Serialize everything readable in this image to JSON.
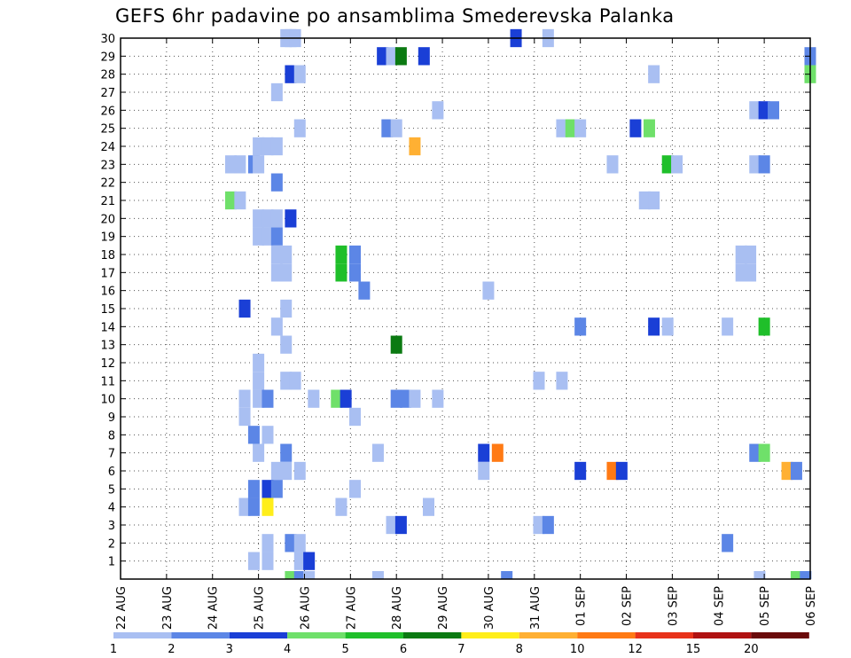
{
  "chart_data": {
    "type": "heatmap",
    "title": "GEFS 6hr padavine po ansamblima Smederevska Palanka",
    "xlabel": "",
    "ylabel": "",
    "x_tick_labels": [
      "22 AUG",
      "23 AUG",
      "24 AUG",
      "25 AUG",
      "26 AUG",
      "27 AUG",
      "28 AUG",
      "29 AUG",
      "30 AUG",
      "31 AUG",
      "01 SEP",
      "02 SEP",
      "03 SEP",
      "04 SEP",
      "05 SEP",
      "06 SEP"
    ],
    "xlim_days": [
      0,
      15
    ],
    "y_tick_labels": [
      "1",
      "2",
      "3",
      "4",
      "5",
      "6",
      "7",
      "8",
      "9",
      "10",
      "11",
      "12",
      "13",
      "14",
      "15",
      "16",
      "17",
      "18",
      "19",
      "20",
      "21",
      "22",
      "23",
      "24",
      "25",
      "26",
      "27",
      "28",
      "29",
      "30"
    ],
    "ylim": [
      0,
      30
    ],
    "grid": true,
    "colorbar": {
      "labels": [
        "1",
        "2",
        "3",
        "4",
        "5",
        "6",
        "7",
        "8",
        "10",
        "12",
        "15",
        "20"
      ],
      "colors": [
        "#a9bff2",
        "#5c86e6",
        "#1a3fd6",
        "#6fe06a",
        "#1fbf2a",
        "#0b7a12",
        "#ffee1a",
        "#ffb033",
        "#ff7a14",
        "#e8321a",
        "#b01212",
        "#6a0a0a"
      ]
    },
    "cells": [
      [
        3.6,
        30,
        0
      ],
      [
        3.7,
        30,
        0
      ],
      [
        3.8,
        30,
        0
      ],
      [
        8.6,
        30,
        2
      ],
      [
        9.3,
        30,
        0
      ],
      [
        5.7,
        29,
        2
      ],
      [
        5.9,
        29,
        0
      ],
      [
        6.1,
        29,
        5
      ],
      [
        6.6,
        29,
        2
      ],
      [
        15.0,
        29,
        1
      ],
      [
        3.7,
        28,
        2
      ],
      [
        3.9,
        28,
        0
      ],
      [
        11.6,
        28,
        0
      ],
      [
        15.0,
        28,
        3
      ],
      [
        3.4,
        27,
        0
      ],
      [
        6.9,
        26,
        0
      ],
      [
        13.8,
        26,
        0
      ],
      [
        14.0,
        26,
        2
      ],
      [
        14.2,
        26,
        1
      ],
      [
        3.9,
        25,
        0
      ],
      [
        5.8,
        25,
        1
      ],
      [
        6.0,
        25,
        0
      ],
      [
        9.6,
        25,
        0
      ],
      [
        9.8,
        25,
        3
      ],
      [
        10.0,
        25,
        0
      ],
      [
        11.2,
        25,
        2
      ],
      [
        11.5,
        25,
        3
      ],
      [
        6.4,
        24,
        7
      ],
      [
        3.0,
        24,
        0
      ],
      [
        3.2,
        24,
        0
      ],
      [
        3.4,
        24,
        0
      ],
      [
        2.4,
        23,
        0
      ],
      [
        2.6,
        23,
        0
      ],
      [
        2.9,
        23,
        1
      ],
      [
        3.0,
        23,
        0
      ],
      [
        10.7,
        23,
        0
      ],
      [
        11.9,
        23,
        4
      ],
      [
        12.1,
        23,
        0
      ],
      [
        13.8,
        23,
        0
      ],
      [
        14.0,
        23,
        1
      ],
      [
        3.4,
        22,
        1
      ],
      [
        2.4,
        21,
        3
      ],
      [
        2.6,
        21,
        0
      ],
      [
        11.4,
        21,
        0
      ],
      [
        11.6,
        21,
        0
      ],
      [
        3.0,
        20,
        0
      ],
      [
        3.2,
        20,
        0
      ],
      [
        3.4,
        20,
        0
      ],
      [
        3.7,
        20,
        2
      ],
      [
        3.0,
        19,
        0
      ],
      [
        3.2,
        19,
        0
      ],
      [
        3.4,
        19,
        1
      ],
      [
        3.4,
        18,
        0
      ],
      [
        3.6,
        18,
        0
      ],
      [
        4.8,
        18,
        4
      ],
      [
        5.1,
        18,
        1
      ],
      [
        13.5,
        18,
        0
      ],
      [
        13.7,
        18,
        0
      ],
      [
        3.4,
        17,
        0
      ],
      [
        3.6,
        17,
        0
      ],
      [
        4.8,
        17,
        4
      ],
      [
        5.1,
        17,
        1
      ],
      [
        13.5,
        17,
        0
      ],
      [
        13.7,
        17,
        0
      ],
      [
        5.3,
        16,
        1
      ],
      [
        8.0,
        16,
        0
      ],
      [
        2.7,
        15,
        2
      ],
      [
        3.6,
        15,
        0
      ],
      [
        3.4,
        14,
        0
      ],
      [
        10.0,
        14,
        1
      ],
      [
        11.6,
        14,
        2
      ],
      [
        11.9,
        14,
        0
      ],
      [
        13.2,
        14,
        0
      ],
      [
        14.0,
        14,
        4
      ],
      [
        6.0,
        13,
        5
      ],
      [
        3.6,
        13,
        0
      ],
      [
        3.0,
        12,
        0
      ],
      [
        3.0,
        11,
        0
      ],
      [
        3.6,
        11,
        0
      ],
      [
        3.8,
        11,
        0
      ],
      [
        9.1,
        11,
        0
      ],
      [
        9.6,
        11,
        0
      ],
      [
        2.7,
        10,
        0
      ],
      [
        3.0,
        10,
        0
      ],
      [
        3.2,
        10,
        1
      ],
      [
        4.2,
        10,
        0
      ],
      [
        4.7,
        10,
        3
      ],
      [
        4.9,
        10,
        2
      ],
      [
        6.0,
        10,
        1
      ],
      [
        6.2,
        10,
        1
      ],
      [
        6.4,
        10,
        0
      ],
      [
        6.9,
        10,
        0
      ],
      [
        2.7,
        9,
        0
      ],
      [
        5.1,
        9,
        0
      ],
      [
        2.9,
        8,
        1
      ],
      [
        3.2,
        8,
        0
      ],
      [
        3.0,
        7,
        0
      ],
      [
        3.6,
        7,
        1
      ],
      [
        5.6,
        7,
        0
      ],
      [
        7.9,
        7,
        2
      ],
      [
        8.2,
        7,
        8
      ],
      [
        13.8,
        7,
        1
      ],
      [
        14.0,
        7,
        3
      ],
      [
        3.4,
        6,
        0
      ],
      [
        3.6,
        6,
        0
      ],
      [
        3.9,
        6,
        0
      ],
      [
        7.9,
        6,
        0
      ],
      [
        10.0,
        6,
        2
      ],
      [
        10.7,
        6,
        8
      ],
      [
        10.9,
        6,
        2
      ],
      [
        14.5,
        6,
        7
      ],
      [
        14.7,
        6,
        1
      ],
      [
        2.9,
        5,
        1
      ],
      [
        3.2,
        5,
        2
      ],
      [
        3.4,
        5,
        1
      ],
      [
        5.1,
        5,
        0
      ],
      [
        2.7,
        4,
        0
      ],
      [
        2.9,
        4,
        1
      ],
      [
        3.2,
        4,
        6
      ],
      [
        4.8,
        4,
        0
      ],
      [
        6.7,
        4,
        0
      ],
      [
        5.9,
        3,
        0
      ],
      [
        6.1,
        3,
        2
      ],
      [
        9.1,
        3,
        0
      ],
      [
        9.3,
        3,
        1
      ],
      [
        3.2,
        2,
        0
      ],
      [
        3.7,
        2,
        1
      ],
      [
        3.9,
        2,
        0
      ],
      [
        13.2,
        2,
        1
      ],
      [
        2.9,
        1,
        0
      ],
      [
        3.2,
        1,
        0
      ],
      [
        3.9,
        1,
        0
      ],
      [
        4.1,
        1,
        2
      ],
      [
        3.7,
        0,
        3
      ],
      [
        3.9,
        0,
        1
      ],
      [
        4.1,
        0,
        0
      ],
      [
        5.6,
        0,
        0
      ],
      [
        8.4,
        0,
        1
      ],
      [
        13.9,
        0,
        0
      ],
      [
        14.7,
        0,
        3
      ],
      [
        14.9,
        0,
        1
      ]
    ]
  }
}
